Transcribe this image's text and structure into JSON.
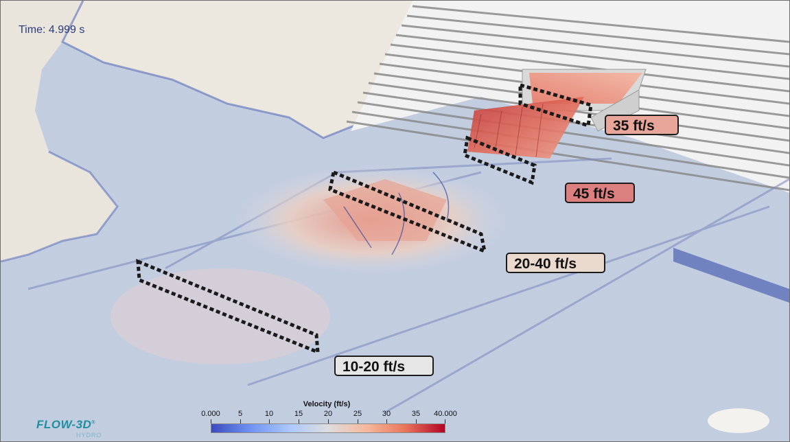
{
  "simulation": {
    "time_label": "Time: 4.999 s"
  },
  "callouts": {
    "c35": "35 ft/s",
    "c45": "45 ft/s",
    "c2040": "20-40 ft/s",
    "c1020": "10-20 ft/s"
  },
  "colorbar": {
    "title": "Velocity (ft/s)",
    "ticks": [
      "0.000",
      "5",
      "10",
      "15",
      "20",
      "25",
      "30",
      "35",
      "40.000"
    ],
    "colormap": "cool-warm"
  },
  "logo": {
    "name": "FLOW-3D",
    "mark": "®",
    "sub": "HYDRO"
  },
  "colors": {
    "callout_35_bg": "#e8a69a",
    "callout_45_bg": "#dc7f7f",
    "callout_2040_bg": "#ead9cd",
    "callout_1020_bg": "#e6e6e6",
    "water": "#c2cde0",
    "bank": "#ece8e0"
  }
}
